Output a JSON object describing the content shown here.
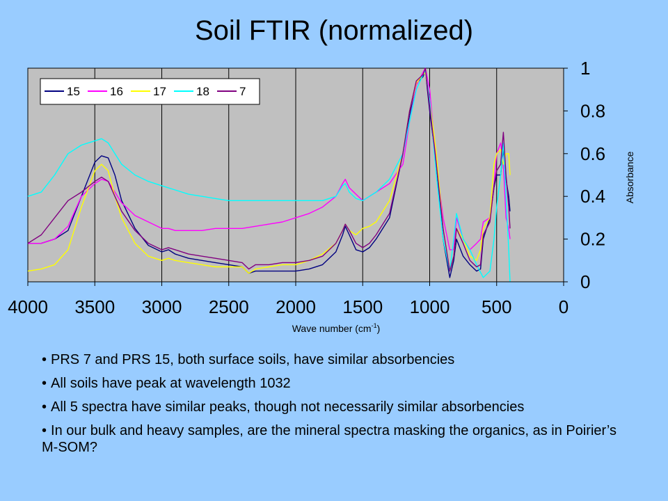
{
  "slide": {
    "title": "Soil FTIR (normalized)",
    "bullets": [
      "PRS 7 and PRS 15, both surface soils, have similar absorbencies",
      "All soils have peak at wavelength 1032",
      "All 5 spectra have similar peaks, though not necessarily similar absorbencies",
      "In our bulk and heavy samples, are the mineral spectra masking the organics, as in Poirier’s M-SOM?"
    ]
  },
  "chart_data": {
    "type": "line",
    "title": "",
    "xlabel": "Wave number (cm",
    "xlabel_sup": "-1",
    "xlabel_close": ")",
    "ylabel": "Absorbance",
    "xlim": [
      4000,
      0
    ],
    "ylim": [
      0,
      1
    ],
    "x_reversed": true,
    "xticks": [
      4000,
      3500,
      3000,
      2500,
      2000,
      1500,
      1000,
      500,
      0
    ],
    "yticks": [
      0,
      0.2,
      0.4,
      0.6,
      0.8,
      1
    ],
    "ytick_labels": [
      "0",
      "0.2",
      "0.4",
      "0.6",
      "0.8",
      "1"
    ],
    "grid": "vertical",
    "plot_background": "#c0c0c0",
    "legend_position": "top-left",
    "series": [
      {
        "name": "15",
        "color": "#000080",
        "x": [
          4000,
          3900,
          3800,
          3700,
          3600,
          3500,
          3450,
          3400,
          3350,
          3300,
          3200,
          3100,
          3000,
          2950,
          2900,
          2800,
          2700,
          2600,
          2500,
          2400,
          2350,
          2300,
          2200,
          2100,
          2000,
          1900,
          1800,
          1700,
          1650,
          1630,
          1600,
          1550,
          1500,
          1450,
          1400,
          1300,
          1200,
          1150,
          1100,
          1050,
          1032,
          1000,
          950,
          900,
          850,
          820,
          800,
          750,
          700,
          650,
          620,
          600,
          550,
          520,
          500,
          470,
          450,
          430,
          410,
          400
        ],
        "y": [
          0.18,
          0.18,
          0.2,
          0.24,
          0.4,
          0.56,
          0.59,
          0.58,
          0.5,
          0.38,
          0.25,
          0.17,
          0.14,
          0.15,
          0.13,
          0.11,
          0.1,
          0.09,
          0.08,
          0.07,
          0.04,
          0.05,
          0.05,
          0.05,
          0.05,
          0.06,
          0.08,
          0.14,
          0.22,
          0.26,
          0.22,
          0.15,
          0.14,
          0.16,
          0.2,
          0.3,
          0.6,
          0.78,
          0.93,
          0.96,
          0.99,
          0.8,
          0.55,
          0.2,
          0.02,
          0.1,
          0.2,
          0.12,
          0.08,
          0.05,
          0.06,
          0.2,
          0.3,
          0.44,
          0.5,
          0.5,
          0.62,
          0.48,
          0.4,
          0.33
        ]
      },
      {
        "name": "16",
        "color": "#ff00ff",
        "x": [
          4000,
          3900,
          3800,
          3700,
          3600,
          3500,
          3450,
          3400,
          3350,
          3300,
          3200,
          3100,
          3000,
          2950,
          2900,
          2800,
          2700,
          2600,
          2500,
          2400,
          2300,
          2200,
          2100,
          2000,
          1900,
          1800,
          1700,
          1650,
          1630,
          1600,
          1550,
          1500,
          1450,
          1400,
          1300,
          1200,
          1150,
          1100,
          1050,
          1032,
          1000,
          950,
          900,
          850,
          820,
          800,
          750,
          700,
          650,
          620,
          600,
          550,
          520,
          500,
          470,
          450,
          430,
          410,
          400
        ],
        "y": [
          0.18,
          0.18,
          0.2,
          0.26,
          0.4,
          0.46,
          0.48,
          0.47,
          0.42,
          0.37,
          0.31,
          0.28,
          0.25,
          0.25,
          0.24,
          0.24,
          0.24,
          0.25,
          0.25,
          0.25,
          0.26,
          0.27,
          0.28,
          0.3,
          0.32,
          0.35,
          0.4,
          0.46,
          0.48,
          0.44,
          0.41,
          0.38,
          0.4,
          0.42,
          0.46,
          0.55,
          0.75,
          0.92,
          0.98,
          1.0,
          0.9,
          0.55,
          0.3,
          0.15,
          0.15,
          0.3,
          0.2,
          0.15,
          0.18,
          0.2,
          0.28,
          0.3,
          0.45,
          0.6,
          0.65,
          0.55,
          0.3,
          0.25,
          0.2
        ]
      },
      {
        "name": "17",
        "color": "#ffff00",
        "x": [
          4000,
          3900,
          3800,
          3700,
          3600,
          3500,
          3450,
          3400,
          3350,
          3300,
          3200,
          3100,
          3000,
          2950,
          2900,
          2800,
          2700,
          2600,
          2500,
          2400,
          2350,
          2300,
          2200,
          2100,
          2000,
          1900,
          1800,
          1700,
          1650,
          1630,
          1600,
          1550,
          1500,
          1450,
          1400,
          1300,
          1200,
          1150,
          1100,
          1050,
          1032,
          1000,
          950,
          900,
          850,
          820,
          800,
          750,
          700,
          650,
          620,
          600,
          550,
          520,
          500,
          470,
          450,
          430,
          410,
          400
        ],
        "y": [
          0.05,
          0.06,
          0.08,
          0.15,
          0.35,
          0.52,
          0.55,
          0.52,
          0.4,
          0.3,
          0.18,
          0.12,
          0.1,
          0.11,
          0.1,
          0.09,
          0.08,
          0.07,
          0.07,
          0.07,
          0.04,
          0.06,
          0.07,
          0.08,
          0.08,
          0.1,
          0.13,
          0.18,
          0.24,
          0.27,
          0.24,
          0.22,
          0.25,
          0.26,
          0.28,
          0.38,
          0.6,
          0.8,
          0.93,
          0.97,
          0.98,
          0.85,
          0.6,
          0.25,
          0.05,
          0.12,
          0.25,
          0.2,
          0.12,
          0.1,
          0.15,
          0.25,
          0.3,
          0.55,
          0.6,
          0.62,
          0.55,
          0.6,
          0.6,
          0.5
        ]
      },
      {
        "name": "18",
        "color": "#00ffff",
        "x": [
          4000,
          3900,
          3800,
          3700,
          3600,
          3500,
          3450,
          3400,
          3350,
          3300,
          3200,
          3100,
          3000,
          2900,
          2800,
          2700,
          2600,
          2500,
          2400,
          2300,
          2200,
          2100,
          2000,
          1900,
          1800,
          1700,
          1650,
          1630,
          1600,
          1550,
          1500,
          1450,
          1400,
          1300,
          1200,
          1150,
          1100,
          1050,
          1032,
          1000,
          950,
          900,
          850,
          820,
          800,
          750,
          700,
          650,
          600,
          550,
          520,
          500,
          470,
          450,
          430,
          410,
          400
        ],
        "y": [
          0.4,
          0.42,
          0.5,
          0.6,
          0.64,
          0.66,
          0.67,
          0.65,
          0.6,
          0.55,
          0.5,
          0.47,
          0.45,
          0.43,
          0.41,
          0.4,
          0.39,
          0.38,
          0.38,
          0.38,
          0.38,
          0.38,
          0.38,
          0.38,
          0.38,
          0.4,
          0.45,
          0.46,
          0.42,
          0.39,
          0.38,
          0.4,
          0.42,
          0.48,
          0.6,
          0.75,
          0.9,
          0.97,
          0.99,
          0.85,
          0.5,
          0.2,
          0.05,
          0.2,
          0.32,
          0.2,
          0.15,
          0.08,
          0.02,
          0.05,
          0.2,
          0.35,
          0.5,
          0.65,
          0.4,
          0.15,
          0.0
        ]
      },
      {
        "name": "7",
        "color": "#800080",
        "x": [
          4000,
          3900,
          3800,
          3700,
          3600,
          3500,
          3450,
          3400,
          3350,
          3300,
          3200,
          3100,
          3000,
          2950,
          2900,
          2800,
          2700,
          2600,
          2500,
          2400,
          2350,
          2300,
          2200,
          2100,
          2000,
          1900,
          1800,
          1700,
          1650,
          1630,
          1600,
          1550,
          1500,
          1450,
          1400,
          1300,
          1200,
          1150,
          1100,
          1050,
          1032,
          1000,
          950,
          900,
          850,
          820,
          800,
          750,
          700,
          650,
          620,
          600,
          550,
          520,
          500,
          470,
          450,
          430,
          410,
          400
        ],
        "y": [
          0.18,
          0.22,
          0.3,
          0.38,
          0.42,
          0.47,
          0.49,
          0.47,
          0.4,
          0.33,
          0.24,
          0.18,
          0.15,
          0.16,
          0.15,
          0.13,
          0.12,
          0.11,
          0.1,
          0.09,
          0.06,
          0.08,
          0.08,
          0.09,
          0.09,
          0.1,
          0.12,
          0.18,
          0.24,
          0.27,
          0.24,
          0.18,
          0.16,
          0.18,
          0.22,
          0.32,
          0.6,
          0.8,
          0.94,
          0.97,
          1.0,
          0.82,
          0.55,
          0.25,
          0.05,
          0.12,
          0.25,
          0.18,
          0.1,
          0.07,
          0.08,
          0.22,
          0.28,
          0.45,
          0.52,
          0.55,
          0.7,
          0.5,
          0.35,
          0.25
        ]
      }
    ]
  }
}
